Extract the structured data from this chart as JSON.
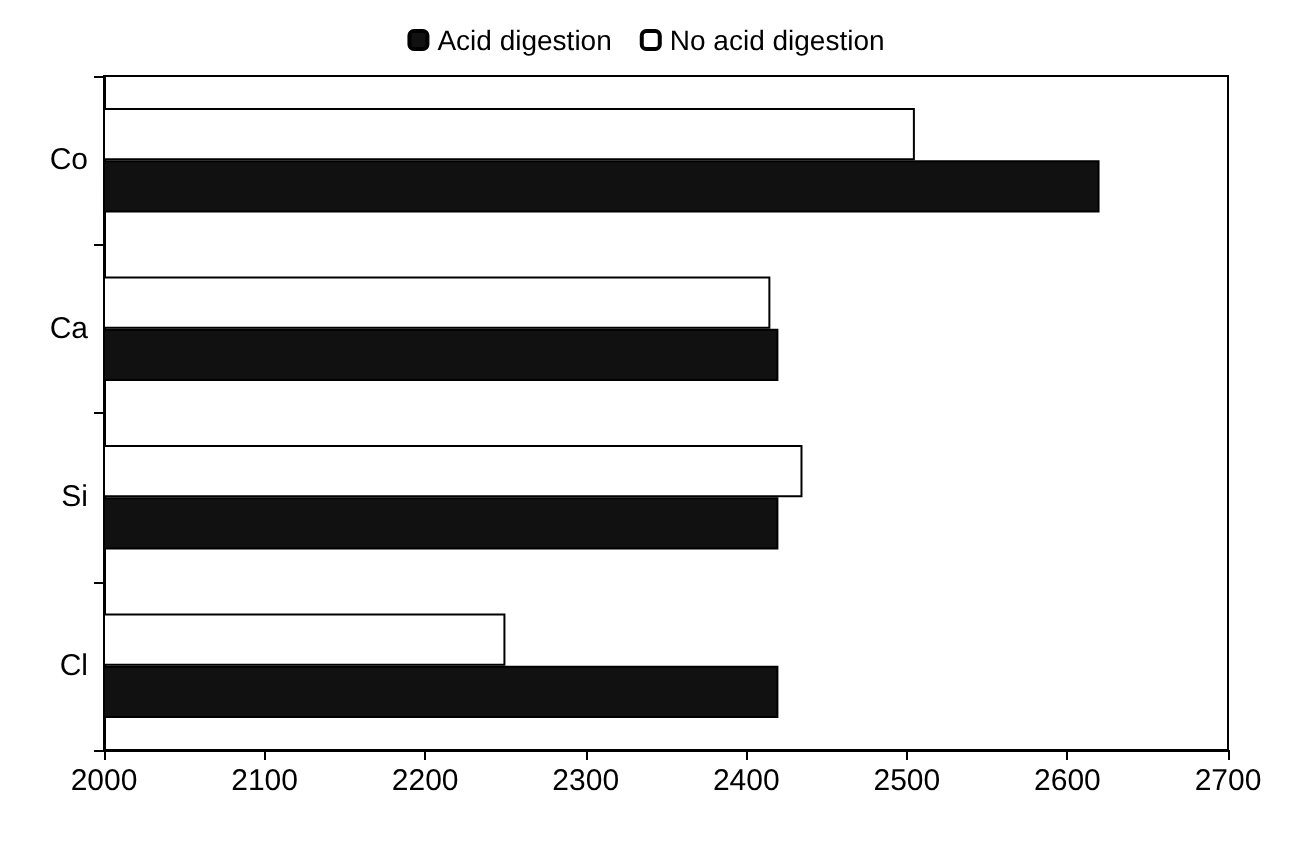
{
  "chart_data": {
    "type": "bar",
    "orientation": "horizontal",
    "categories": [
      "Co",
      "Ca",
      "Si",
      "Cl"
    ],
    "series": [
      {
        "name": "Acid digestion",
        "color": "#111111",
        "values": [
          2620,
          2420,
          2420,
          2420
        ]
      },
      {
        "name": "No acid digestion",
        "color": "#ffffff",
        "values": [
          2505,
          2415,
          2435,
          2250
        ]
      }
    ],
    "xlim": [
      2000,
      2700
    ],
    "xticks": [
      2000,
      2100,
      2200,
      2300,
      2400,
      2500,
      2600,
      2700
    ],
    "grid": false,
    "legend": "top"
  }
}
